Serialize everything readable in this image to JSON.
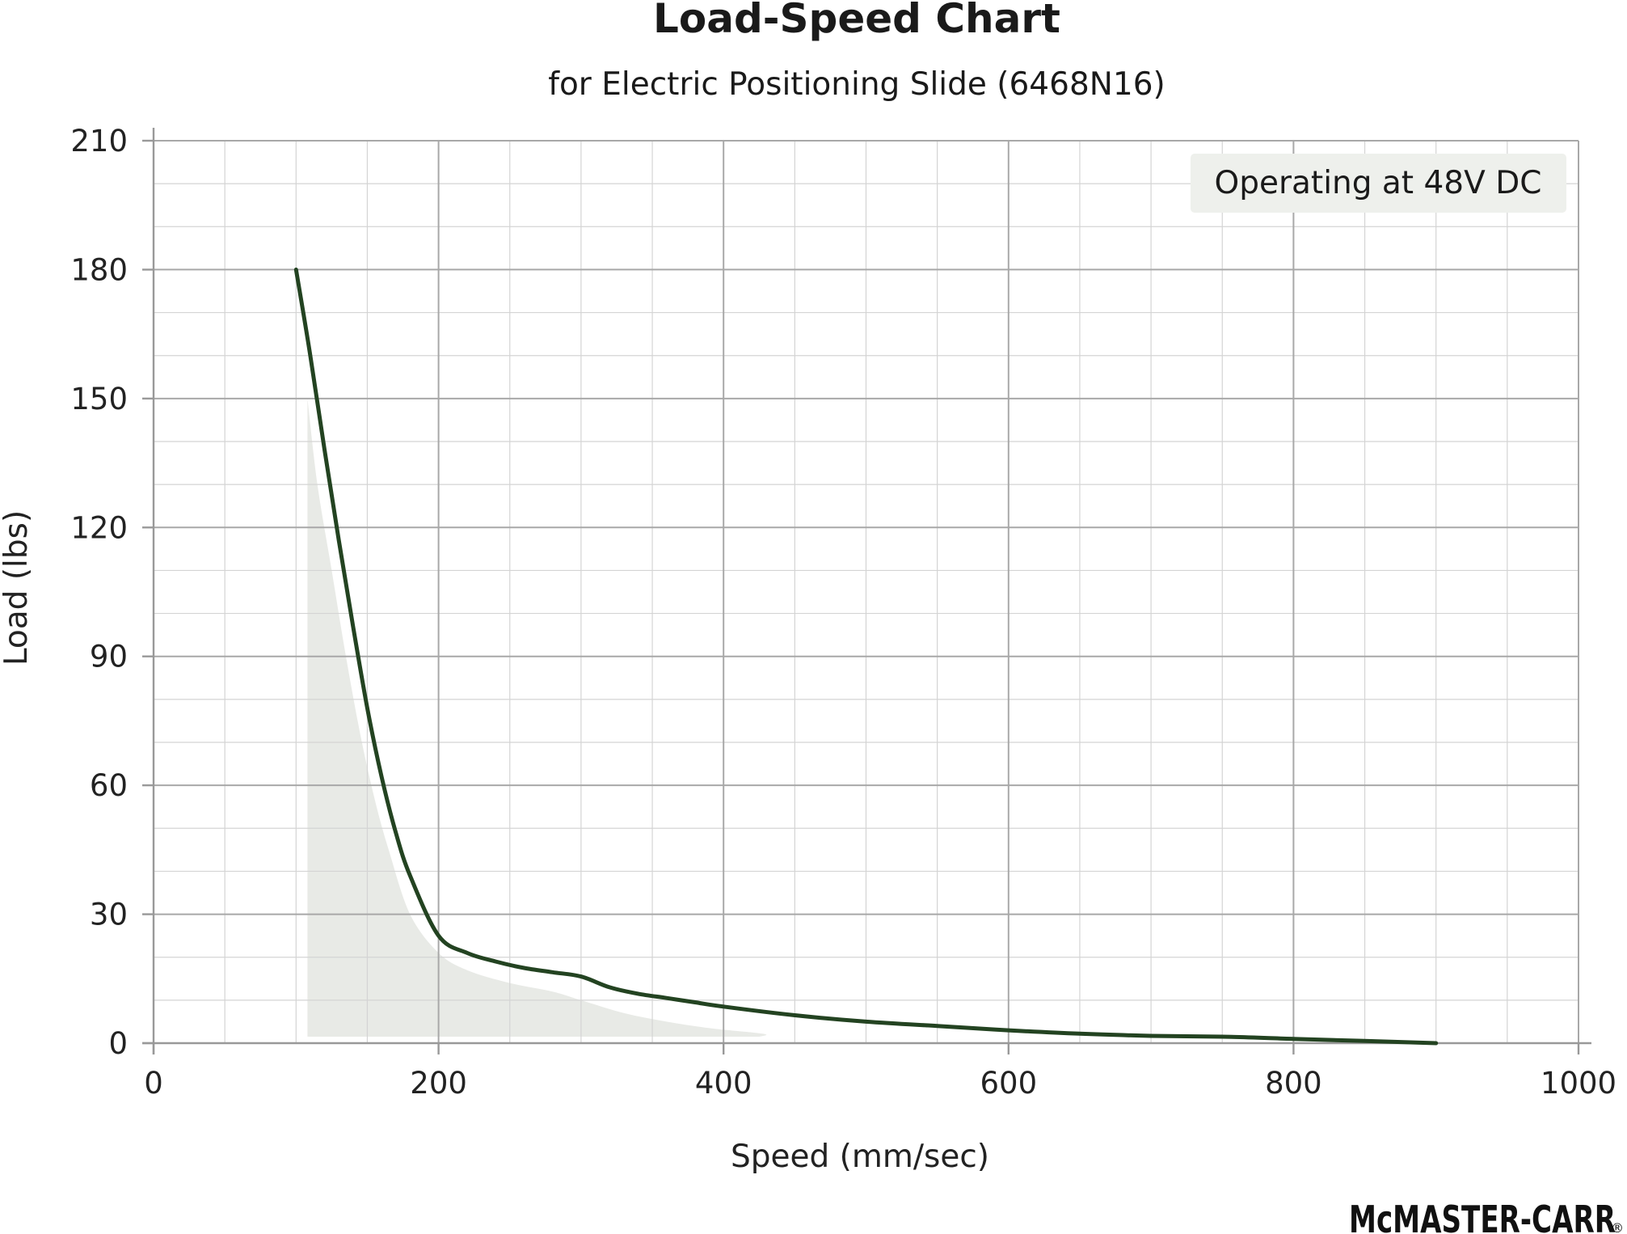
{
  "chart_data": {
    "type": "line",
    "title": "Load-Speed Chart",
    "subtitle": "for Electric Positioning Slide (6468N16)",
    "xlabel": "Speed (mm/sec)",
    "ylabel": "Load (lbs)",
    "xlim": [
      0,
      1000
    ],
    "ylim": [
      0,
      210
    ],
    "x_ticks": [
      0,
      200,
      400,
      600,
      800,
      1000
    ],
    "y_ticks": [
      0,
      30,
      60,
      90,
      120,
      150,
      180,
      210
    ],
    "x_minor_step": 50,
    "y_minor_step": 10,
    "grid": true,
    "annotation": "Operating at 48V DC",
    "series": [
      {
        "values": [
          [
            100,
            180
          ],
          [
            110,
            160
          ],
          [
            120,
            138
          ],
          [
            130,
            117
          ],
          [
            140,
            97
          ],
          [
            150,
            78
          ],
          [
            160,
            62
          ],
          [
            170,
            49
          ],
          [
            180,
            39
          ],
          [
            200,
            25
          ],
          [
            220,
            21
          ],
          [
            240,
            19
          ],
          [
            260,
            17.5
          ],
          [
            280,
            16.5
          ],
          [
            300,
            15.5
          ],
          [
            320,
            13
          ],
          [
            340,
            11.5
          ],
          [
            360,
            10.5
          ],
          [
            380,
            9.5
          ],
          [
            400,
            8.5
          ],
          [
            450,
            6.5
          ],
          [
            500,
            5
          ],
          [
            550,
            4
          ],
          [
            600,
            3
          ],
          [
            650,
            2.2
          ],
          [
            700,
            1.7
          ],
          [
            750,
            1.5
          ],
          [
            800,
            1
          ],
          [
            850,
            0.5
          ],
          [
            900,
            0
          ]
        ]
      }
    ],
    "shaded_region": [
      [
        108,
        150
      ],
      [
        115,
        130
      ],
      [
        125,
        110
      ],
      [
        135,
        90
      ],
      [
        145,
        72
      ],
      [
        155,
        57
      ],
      [
        165,
        45
      ],
      [
        180,
        30
      ],
      [
        200,
        21
      ],
      [
        220,
        17
      ],
      [
        250,
        14
      ],
      [
        280,
        12
      ],
      [
        300,
        10
      ],
      [
        330,
        7
      ],
      [
        360,
        5
      ],
      [
        390,
        3.5
      ],
      [
        420,
        2.5
      ],
      [
        430,
        2
      ],
      [
        425,
        1.5
      ],
      [
        108,
        1.5
      ]
    ],
    "colors": {
      "line": "#234321",
      "shading": "#e8eae6",
      "grid_major": "#a8a8a8",
      "grid_minor": "#d4d4d4",
      "axis": "#999999",
      "annotation_bg": "#eef0ec"
    }
  },
  "brand": {
    "text": "McMASTER-CARR",
    "mark": "®"
  }
}
